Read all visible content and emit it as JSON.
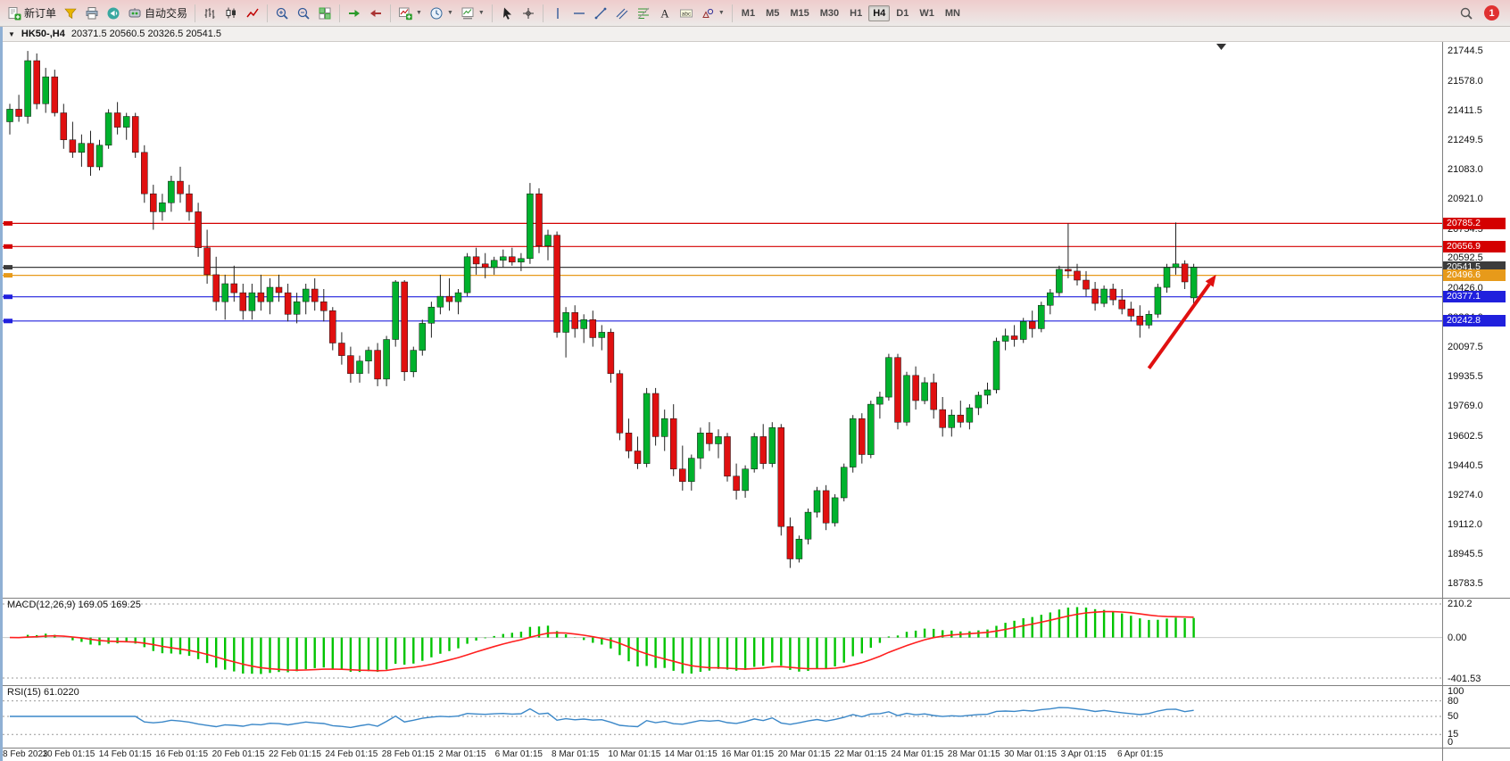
{
  "toolbar": {
    "buttons": [
      {
        "name": "new-order-button",
        "icon": "new-order-icon",
        "label": "新订单"
      },
      {
        "name": "profiles-button",
        "icon": "profiles-icon"
      },
      {
        "name": "print-button",
        "icon": "print-icon"
      },
      {
        "name": "alerts-button",
        "icon": "megaphone-icon"
      },
      {
        "name": "autotrading-button",
        "icon": "autotrading-icon",
        "label": "自动交易"
      },
      {
        "sep": true
      },
      {
        "name": "bars-chart-button",
        "icon": "bars-icon"
      },
      {
        "name": "candles-chart-button",
        "icon": "candles-icon"
      },
      {
        "name": "line-chart-button",
        "icon": "line-chart-icon"
      },
      {
        "sep": true
      },
      {
        "name": "zoom-in-button",
        "icon": "zoom-in-icon"
      },
      {
        "name": "zoom-out-button",
        "icon": "zoom-out-icon"
      },
      {
        "name": "tile-windows-button",
        "icon": "tile-windows-icon"
      },
      {
        "sep": true
      },
      {
        "name": "auto-scroll-button",
        "icon": "auto-scroll-icon"
      },
      {
        "name": "chart-shift-button",
        "icon": "chart-shift-icon"
      },
      {
        "sep": true
      },
      {
        "name": "new-chart-button",
        "icon": "new-chart-icon",
        "dropdown": true
      },
      {
        "name": "period-button",
        "icon": "period-icon",
        "dropdown": true
      },
      {
        "name": "template-button",
        "icon": "template-icon",
        "dropdown": true
      },
      {
        "sep": true
      },
      {
        "name": "cursor-button",
        "icon": "cursor-icon"
      },
      {
        "name": "crosshair-button",
        "icon": "crosshair-icon"
      },
      {
        "sep": true
      },
      {
        "name": "vertical-line-button",
        "icon": "vline-icon"
      },
      {
        "name": "horizontal-line-button",
        "icon": "hline-icon"
      },
      {
        "name": "trendline-button",
        "icon": "trendline-icon"
      },
      {
        "name": "channel-button",
        "icon": "channel-icon"
      },
      {
        "name": "fibonacci-button",
        "icon": "fibonacci-icon"
      },
      {
        "name": "text-button",
        "icon": "text-icon"
      },
      {
        "name": "label-button",
        "icon": "label-icon"
      },
      {
        "name": "shapes-button",
        "icon": "shapes-icon",
        "dropdown": true
      },
      {
        "sep": true
      }
    ],
    "timeframes": [
      {
        "label": "M1"
      },
      {
        "label": "M5"
      },
      {
        "label": "M15"
      },
      {
        "label": "M30"
      },
      {
        "label": "H1"
      },
      {
        "label": "H4",
        "active": true
      },
      {
        "label": "D1"
      },
      {
        "label": "W1"
      },
      {
        "label": "MN"
      }
    ],
    "notification_count": "1"
  },
  "chart": {
    "symbol_period": "HK50-,H4",
    "ohlc": "20371.5 20560.5 20326.5 20541.5"
  },
  "chart_data": {
    "type": "candlestick",
    "symbol": "HK50-",
    "period": "H4",
    "open": "20371.5",
    "high": "20560.5",
    "low": "20326.5",
    "close": "20541.5",
    "price_max": 21744.5,
    "price_min": 18783.5,
    "y_ticks": [
      21744.5,
      21578.0,
      21411.5,
      21249.5,
      21083.0,
      20921.0,
      20754.5,
      20592.5,
      20426.0,
      20264.0,
      20097.5,
      19935.5,
      19769.0,
      19602.5,
      19440.5,
      19274.0,
      19112.0,
      18945.5,
      18783.5
    ],
    "x_labels": [
      "8 Feb 2023",
      "10 Feb 01:15",
      "14 Feb 01:15",
      "16 Feb 01:15",
      "20 Feb 01:15",
      "22 Feb 01:15",
      "24 Feb 01:15",
      "28 Feb 01:15",
      "2 Mar 01:15",
      "6 Mar 01:15",
      "8 Mar 01:15",
      "10 Mar 01:15",
      "14 Mar 01:15",
      "16 Mar 01:15",
      "20 Mar 01:15",
      "22 Mar 01:15",
      "24 Mar 01:15",
      "28 Mar 01:15",
      "30 Mar 01:15",
      "3 Apr 01:15",
      "6 Apr 01:15"
    ],
    "candles": [
      [
        21350,
        21450,
        21280,
        21420
      ],
      [
        21420,
        21500,
        21350,
        21380
      ],
      [
        21380,
        21744,
        21340,
        21690
      ],
      [
        21690,
        21730,
        21420,
        21450
      ],
      [
        21450,
        21650,
        21400,
        21600
      ],
      [
        21600,
        21640,
        21380,
        21400
      ],
      [
        21400,
        21450,
        21200,
        21250
      ],
      [
        21250,
        21350,
        21150,
        21180
      ],
      [
        21180,
        21280,
        21100,
        21230
      ],
      [
        21230,
        21300,
        21050,
        21100
      ],
      [
        21100,
        21250,
        21080,
        21220
      ],
      [
        21220,
        21420,
        21200,
        21400
      ],
      [
        21400,
        21460,
        21280,
        21320
      ],
      [
        21320,
        21400,
        21250,
        21380
      ],
      [
        21380,
        21400,
        21150,
        21180
      ],
      [
        21180,
        21220,
        20900,
        20950
      ],
      [
        20950,
        21000,
        20750,
        20850
      ],
      [
        20850,
        20950,
        20800,
        20900
      ],
      [
        20900,
        21050,
        20850,
        21020
      ],
      [
        21020,
        21100,
        20900,
        20950
      ],
      [
        20950,
        21000,
        20800,
        20850
      ],
      [
        20850,
        20900,
        20600,
        20650
      ],
      [
        20650,
        20750,
        20450,
        20500
      ],
      [
        20500,
        20600,
        20300,
        20350
      ],
      [
        20350,
        20500,
        20250,
        20450
      ],
      [
        20450,
        20550,
        20350,
        20400
      ],
      [
        20400,
        20450,
        20250,
        20300
      ],
      [
        20300,
        20450,
        20250,
        20400
      ],
      [
        20400,
        20500,
        20300,
        20350
      ],
      [
        20350,
        20480,
        20280,
        20430
      ],
      [
        20430,
        20500,
        20350,
        20400
      ],
      [
        20400,
        20450,
        20240,
        20280
      ],
      [
        20280,
        20400,
        20230,
        20350
      ],
      [
        20350,
        20450,
        20280,
        20420
      ],
      [
        20420,
        20480,
        20300,
        20350
      ],
      [
        20350,
        20420,
        20240,
        20300
      ],
      [
        20300,
        20320,
        20080,
        20120
      ],
      [
        20120,
        20180,
        20000,
        20050
      ],
      [
        20050,
        20100,
        19900,
        19950
      ],
      [
        19950,
        20050,
        19900,
        20020
      ],
      [
        20020,
        20100,
        19950,
        20080
      ],
      [
        20080,
        20120,
        19880,
        19920
      ],
      [
        19920,
        20160,
        19880,
        20140
      ],
      [
        20140,
        20470,
        20100,
        20460
      ],
      [
        20460,
        20470,
        19910,
        19960
      ],
      [
        19960,
        20100,
        19930,
        20080
      ],
      [
        20080,
        20250,
        20050,
        20230
      ],
      [
        20230,
        20350,
        20150,
        20320
      ],
      [
        20320,
        20500,
        20280,
        20380
      ],
      [
        20380,
        20480,
        20300,
        20350
      ],
      [
        20350,
        20420,
        20280,
        20400
      ],
      [
        20400,
        20620,
        20380,
        20600
      ],
      [
        20600,
        20650,
        20500,
        20560
      ],
      [
        20560,
        20620,
        20480,
        20540
      ],
      [
        20540,
        20600,
        20500,
        20580
      ],
      [
        20580,
        20640,
        20540,
        20600
      ],
      [
        20600,
        20650,
        20550,
        20570
      ],
      [
        20570,
        20620,
        20520,
        20590
      ],
      [
        20590,
        21010,
        20560,
        20950
      ],
      [
        20950,
        20980,
        20620,
        20660
      ],
      [
        20660,
        20750,
        20580,
        20720
      ],
      [
        20720,
        20740,
        20150,
        20180
      ],
      [
        20180,
        20320,
        20040,
        20290
      ],
      [
        20290,
        20330,
        20150,
        20200
      ],
      [
        20200,
        20280,
        20120,
        20250
      ],
      [
        20250,
        20300,
        20100,
        20150
      ],
      [
        20150,
        20220,
        20080,
        20180
      ],
      [
        20180,
        20200,
        19900,
        19950
      ],
      [
        19950,
        19970,
        19580,
        19620
      ],
      [
        19620,
        19700,
        19480,
        19520
      ],
      [
        19520,
        19600,
        19420,
        19450
      ],
      [
        19450,
        19870,
        19430,
        19840
      ],
      [
        19840,
        19870,
        19550,
        19600
      ],
      [
        19600,
        19750,
        19520,
        19700
      ],
      [
        19700,
        19780,
        19380,
        19420
      ],
      [
        19420,
        19550,
        19300,
        19350
      ],
      [
        19350,
        19500,
        19300,
        19480
      ],
      [
        19480,
        19650,
        19420,
        19620
      ],
      [
        19620,
        19680,
        19520,
        19560
      ],
      [
        19560,
        19640,
        19480,
        19600
      ],
      [
        19600,
        19620,
        19350,
        19380
      ],
      [
        19380,
        19450,
        19250,
        19300
      ],
      [
        19300,
        19440,
        19260,
        19420
      ],
      [
        19420,
        19620,
        19400,
        19600
      ],
      [
        19600,
        19670,
        19420,
        19450
      ],
      [
        19450,
        19680,
        19430,
        19650
      ],
      [
        19650,
        19670,
        19050,
        19100
      ],
      [
        19100,
        19150,
        18870,
        18920
      ],
      [
        18920,
        19050,
        18900,
        19030
      ],
      [
        19030,
        19200,
        19000,
        19180
      ],
      [
        19180,
        19320,
        19150,
        19300
      ],
      [
        19300,
        19330,
        19080,
        19120
      ],
      [
        19120,
        19280,
        19100,
        19260
      ],
      [
        19260,
        19450,
        19240,
        19430
      ],
      [
        19430,
        19720,
        19400,
        19700
      ],
      [
        19700,
        19730,
        19450,
        19500
      ],
      [
        19500,
        19800,
        19480,
        19780
      ],
      [
        19780,
        19850,
        19700,
        19820
      ],
      [
        19820,
        20060,
        19800,
        20040
      ],
      [
        20040,
        20060,
        19640,
        19680
      ],
      [
        19680,
        19960,
        19660,
        19940
      ],
      [
        19940,
        19990,
        19750,
        19800
      ],
      [
        19800,
        19930,
        19780,
        19900
      ],
      [
        19900,
        19950,
        19700,
        19750
      ],
      [
        19750,
        19820,
        19600,
        19650
      ],
      [
        19650,
        19750,
        19600,
        19720
      ],
      [
        19720,
        19800,
        19650,
        19680
      ],
      [
        19680,
        19780,
        19640,
        19760
      ],
      [
        19760,
        19850,
        19720,
        19830
      ],
      [
        19830,
        19900,
        19780,
        19860
      ],
      [
        19860,
        20150,
        19840,
        20130
      ],
      [
        20130,
        20200,
        20080,
        20160
      ],
      [
        20160,
        20220,
        20100,
        20140
      ],
      [
        20140,
        20260,
        20120,
        20240
      ],
      [
        20240,
        20300,
        20150,
        20200
      ],
      [
        20200,
        20350,
        20180,
        20330
      ],
      [
        20330,
        20420,
        20280,
        20400
      ],
      [
        20400,
        20550,
        20380,
        20530
      ],
      [
        20530,
        20785,
        20480,
        20520
      ],
      [
        20520,
        20560,
        20440,
        20470
      ],
      [
        20470,
        20520,
        20380,
        20420
      ],
      [
        20420,
        20460,
        20300,
        20340
      ],
      [
        20340,
        20440,
        20320,
        20420
      ],
      [
        20420,
        20450,
        20330,
        20360
      ],
      [
        20360,
        20420,
        20280,
        20310
      ],
      [
        20310,
        20350,
        20240,
        20270
      ],
      [
        20270,
        20330,
        20150,
        20220
      ],
      [
        20220,
        20300,
        20200,
        20280
      ],
      [
        20280,
        20450,
        20260,
        20430
      ],
      [
        20430,
        20560,
        20400,
        20540
      ],
      [
        20540,
        20790,
        20500,
        20560
      ],
      [
        20560,
        20580,
        20420,
        20460
      ],
      [
        20371.5,
        20560.5,
        20326.5,
        20541.5
      ]
    ],
    "hlines": [
      {
        "price": 20785.2,
        "label": "20785.2",
        "color": "#d40000",
        "kind": "resistance"
      },
      {
        "price": 20656.9,
        "label": "20656.9",
        "color": "#d40000",
        "kind": "resistance"
      },
      {
        "price": 20541.5,
        "label": "20541.5",
        "color": "#3c3c3c",
        "kind": "bid"
      },
      {
        "price": 20496.6,
        "label": "20496.6",
        "color": "#e79a1a",
        "kind": "level"
      },
      {
        "price": 20377.1,
        "label": "20377.1",
        "color": "#2020dd",
        "kind": "support"
      },
      {
        "price": 20242.8,
        "label": "20242.8",
        "color": "#2020dd",
        "kind": "support"
      }
    ],
    "arrow": {
      "from_index": 127,
      "from_price": 19980,
      "to_index": 134.5,
      "to_price": 20500,
      "color": "#e01010"
    },
    "macd": {
      "label": "MACD(12,26,9)",
      "values": "169.05 169.25",
      "fast": 12,
      "slow": 26,
      "signal": 9,
      "axis_labels": [
        "210.2",
        "0.00",
        "-401.53"
      ],
      "hist_color": "#00c400",
      "signal_color": "#ff1f1f"
    },
    "rsi": {
      "label": "RSI(15)",
      "value": "61.0220",
      "period": 15,
      "axis_labels": [
        "100",
        "80",
        "50",
        "15",
        "0"
      ],
      "levels": [
        80,
        50,
        15
      ],
      "line_color": "#3a87c8"
    },
    "colors": {
      "bull": "#00b22d",
      "bear": "#e01010",
      "wick": "#222222"
    }
  }
}
